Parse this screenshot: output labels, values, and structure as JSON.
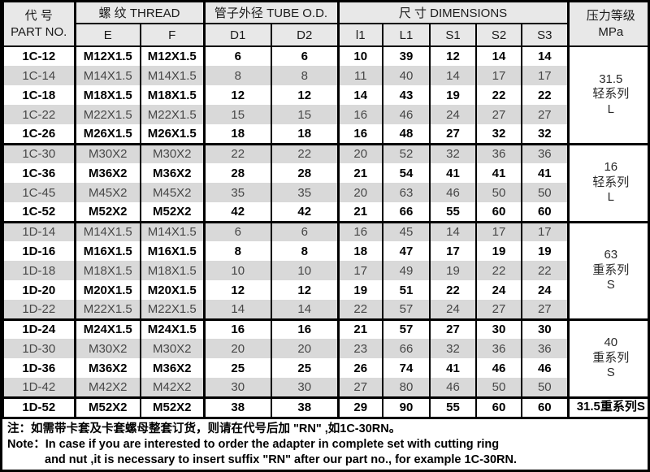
{
  "table": {
    "header": {
      "part_zh": "代  号",
      "part_en": "PART NO.",
      "thread_group": "螺 纹  THREAD",
      "tube_group": "管子外径 TUBE O.D.",
      "dim_group": "尺 寸  DIMENSIONS",
      "pressure_zh": "压力等级",
      "pressure_unit": "MPa",
      "cols": {
        "e": "E",
        "f": "F",
        "d1": "D1",
        "d2": "D2",
        "l1": "l1",
        "L1": "L1",
        "s1": "S1",
        "s2": "S2",
        "s3": "S3"
      }
    },
    "groups": [
      {
        "pressure_lines": [
          "31.5",
          "轻系列",
          "L"
        ],
        "pressure_bold": false,
        "rows": [
          {
            "part": "1C-12",
            "bold": true,
            "values": [
              "M12X1.5",
              "M12X1.5",
              "6",
              "6",
              "10",
              "39",
              "12",
              "14",
              "14"
            ]
          },
          {
            "part": "1C-14",
            "bold": false,
            "values": [
              "M14X1.5",
              "M14X1.5",
              "8",
              "8",
              "11",
              "40",
              "14",
              "17",
              "17"
            ]
          },
          {
            "part": "1C-18",
            "bold": true,
            "values": [
              "M18X1.5",
              "M18X1.5",
              "12",
              "12",
              "14",
              "43",
              "19",
              "22",
              "22"
            ]
          },
          {
            "part": "1C-22",
            "bold": false,
            "values": [
              "M22X1.5",
              "M22X1.5",
              "15",
              "15",
              "16",
              "46",
              "24",
              "27",
              "27"
            ]
          },
          {
            "part": "1C-26",
            "bold": true,
            "values": [
              "M26X1.5",
              "M26X1.5",
              "18",
              "18",
              "16",
              "48",
              "27",
              "32",
              "32"
            ]
          }
        ]
      },
      {
        "pressure_lines": [
          "16",
          "轻系列",
          "L"
        ],
        "pressure_bold": false,
        "rows": [
          {
            "part": "1C-30",
            "bold": false,
            "values": [
              "M30X2",
              "M30X2",
              "22",
              "22",
              "20",
              "52",
              "32",
              "36",
              "36"
            ]
          },
          {
            "part": "1C-36",
            "bold": true,
            "values": [
              "M36X2",
              "M36X2",
              "28",
              "28",
              "21",
              "54",
              "41",
              "41",
              "41"
            ]
          },
          {
            "part": "1C-45",
            "bold": false,
            "values": [
              "M45X2",
              "M45X2",
              "35",
              "35",
              "20",
              "63",
              "46",
              "50",
              "50"
            ]
          },
          {
            "part": "1C-52",
            "bold": true,
            "values": [
              "M52X2",
              "M52X2",
              "42",
              "42",
              "21",
              "66",
              "55",
              "60",
              "60"
            ]
          }
        ]
      },
      {
        "pressure_lines": [
          "63",
          "重系列",
          "S"
        ],
        "pressure_bold": false,
        "rows": [
          {
            "part": "1D-14",
            "bold": false,
            "values": [
              "M14X1.5",
              "M14X1.5",
              "6",
              "6",
              "16",
              "45",
              "14",
              "17",
              "17"
            ]
          },
          {
            "part": "1D-16",
            "bold": true,
            "values": [
              "M16X1.5",
              "M16X1.5",
              "8",
              "8",
              "18",
              "47",
              "17",
              "19",
              "19"
            ]
          },
          {
            "part": "1D-18",
            "bold": false,
            "values": [
              "M18X1.5",
              "M18X1.5",
              "10",
              "10",
              "17",
              "49",
              "19",
              "22",
              "22"
            ]
          },
          {
            "part": "1D-20",
            "bold": true,
            "values": [
              "M20X1.5",
              "M20X1.5",
              "12",
              "12",
              "19",
              "51",
              "22",
              "24",
              "24"
            ]
          },
          {
            "part": "1D-22",
            "bold": false,
            "values": [
              "M22X1.5",
              "M22X1.5",
              "14",
              "14",
              "22",
              "57",
              "24",
              "27",
              "27"
            ]
          }
        ]
      },
      {
        "pressure_lines": [
          "40",
          "重系列",
          "S"
        ],
        "pressure_bold": false,
        "rows": [
          {
            "part": "1D-24",
            "bold": true,
            "values": [
              "M24X1.5",
              "M24X1.5",
              "16",
              "16",
              "21",
              "57",
              "27",
              "30",
              "30"
            ]
          },
          {
            "part": "1D-30",
            "bold": false,
            "values": [
              "M30X2",
              "M30X2",
              "20",
              "20",
              "23",
              "66",
              "32",
              "36",
              "36"
            ]
          },
          {
            "part": "1D-36",
            "bold": true,
            "values": [
              "M36X2",
              "M36X2",
              "25",
              "25",
              "26",
              "74",
              "41",
              "46",
              "46"
            ]
          },
          {
            "part": "1D-42",
            "bold": false,
            "values": [
              "M42X2",
              "M42X2",
              "30",
              "30",
              "27",
              "80",
              "46",
              "50",
              "50"
            ]
          }
        ]
      },
      {
        "pressure_lines": [
          "31.5重系列S"
        ],
        "pressure_bold": true,
        "rows": [
          {
            "part": "1D-52",
            "bold": true,
            "values": [
              "M52X2",
              "M52X2",
              "38",
              "38",
              "29",
              "90",
              "55",
              "60",
              "60"
            ]
          }
        ]
      }
    ]
  },
  "notes": {
    "zh": "注：如需带卡套及卡套螺母整套订货，则请在代号后加 \"RN\" ,如1C-30RN。",
    "en1": "Note：In case if you are interested to order the adapter in complete set with cutting ring",
    "en2": "and nut ,it is necessary to insert suffix \"RN\" after our part no.,  for example 1C-30RN."
  }
}
